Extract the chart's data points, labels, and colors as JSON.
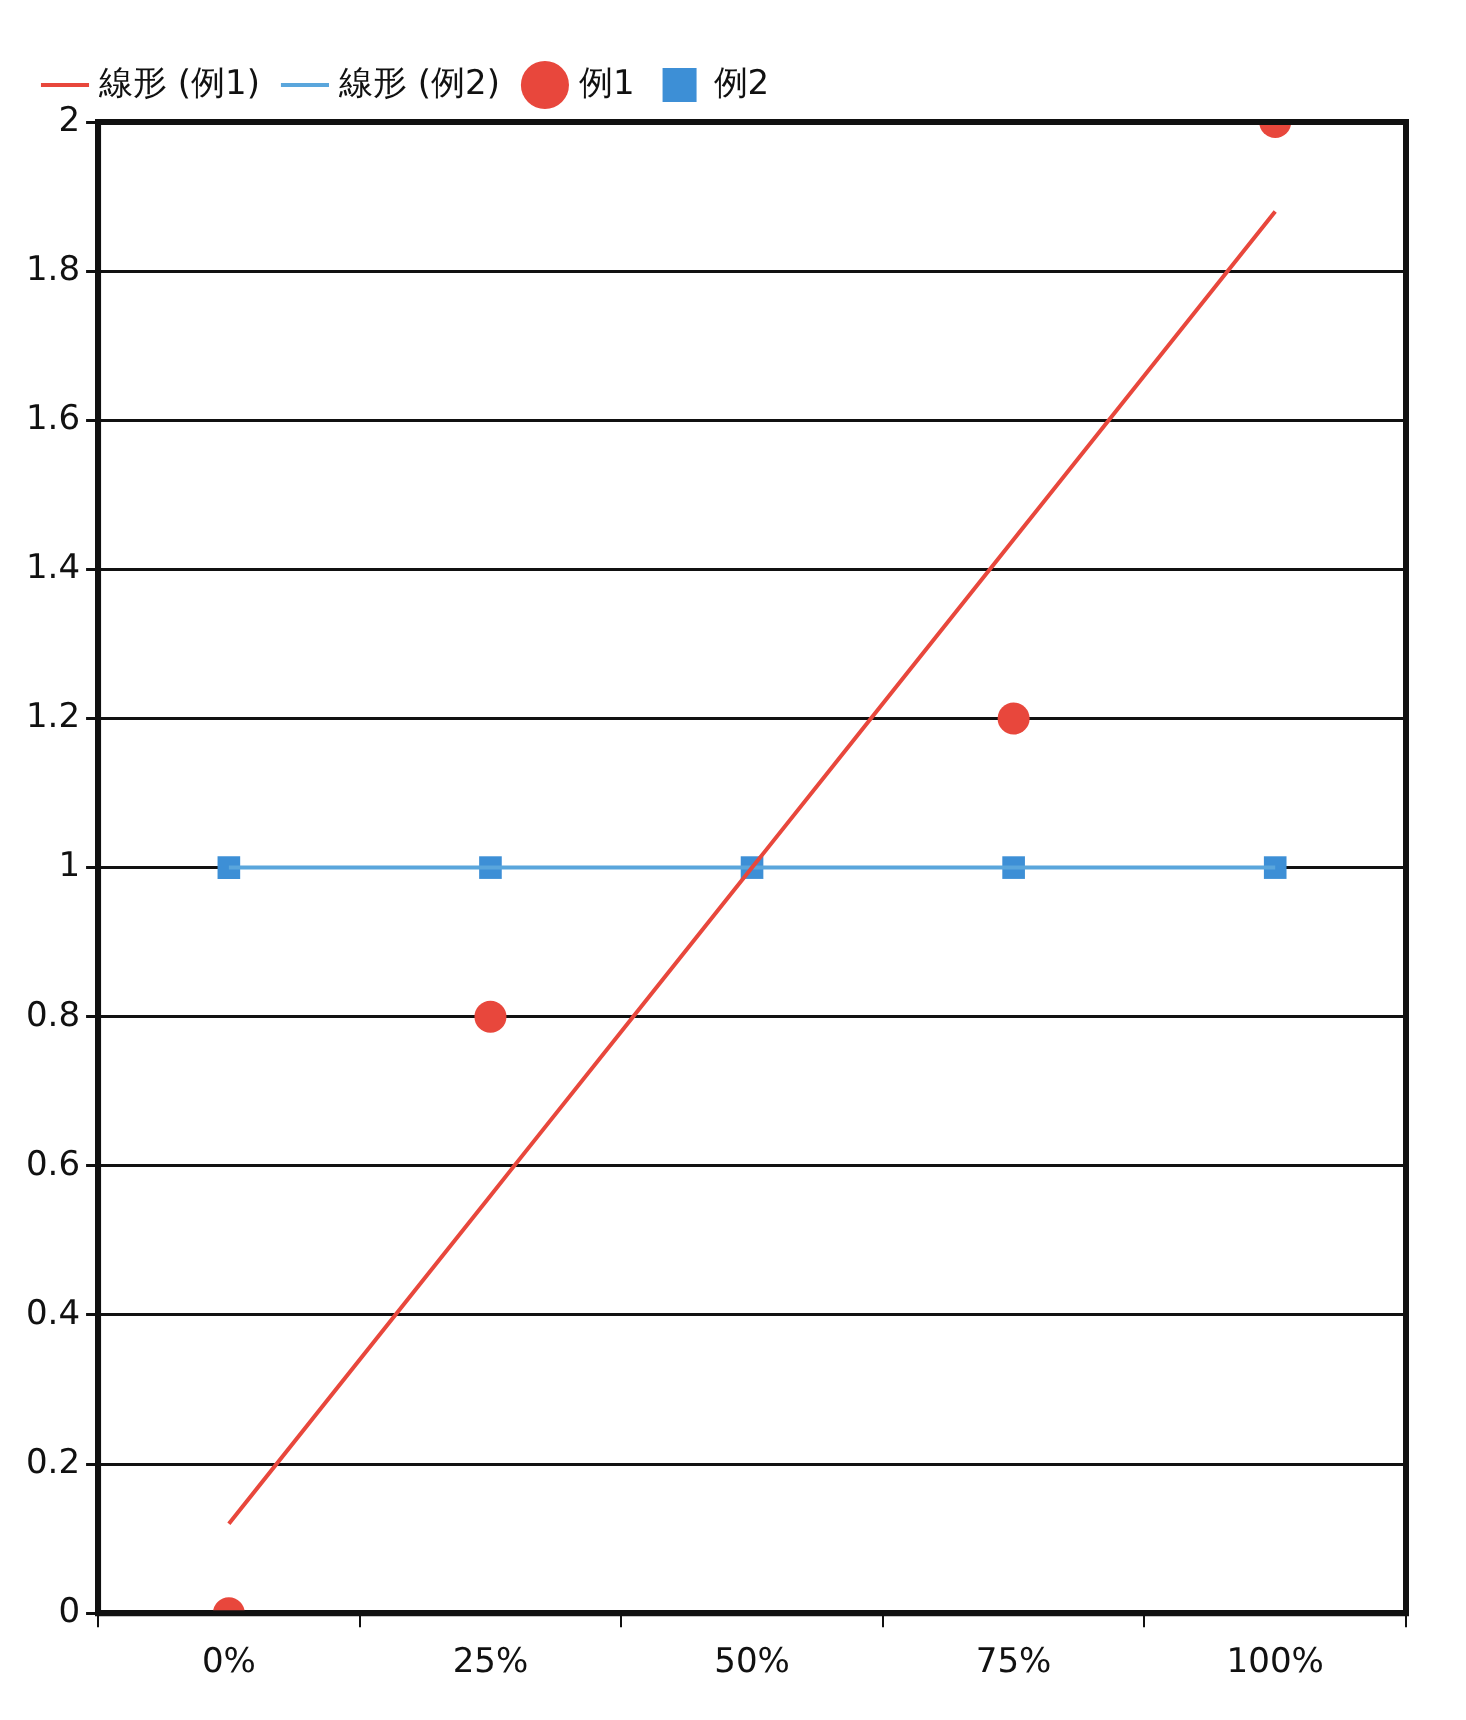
{
  "chart_data": {
    "type": "scatter",
    "categories": [
      "0%",
      "25%",
      "50%",
      "75%",
      "100%"
    ],
    "series": [
      {
        "name": "例1",
        "type": "scatter",
        "marker": "circle",
        "color": "#e8473c",
        "values": [
          0,
          0.8,
          null,
          1.2,
          2
        ]
      },
      {
        "name": "例2",
        "type": "scatter",
        "marker": "square",
        "color": "#3d8fd6",
        "values": [
          1,
          1,
          1,
          1,
          1
        ]
      },
      {
        "name": "線形 (例1)",
        "type": "line",
        "marker": "none",
        "line_style": "solid",
        "color": "#e8473c",
        "values": [
          0.12,
          0.56,
          1,
          1.44,
          1.88
        ]
      },
      {
        "name": "線形 (例2)",
        "type": "line",
        "marker": "none",
        "line_style": "solid",
        "color": "#5aa6dc",
        "values": [
          1,
          1,
          1,
          1,
          1
        ]
      }
    ],
    "ylim": [
      0,
      2
    ],
    "yticks": [
      0,
      0.2,
      0.4,
      0.6,
      0.8,
      1,
      1.2,
      1.4,
      1.6,
      1.8,
      2
    ],
    "grid": "y",
    "legend": "top left"
  }
}
